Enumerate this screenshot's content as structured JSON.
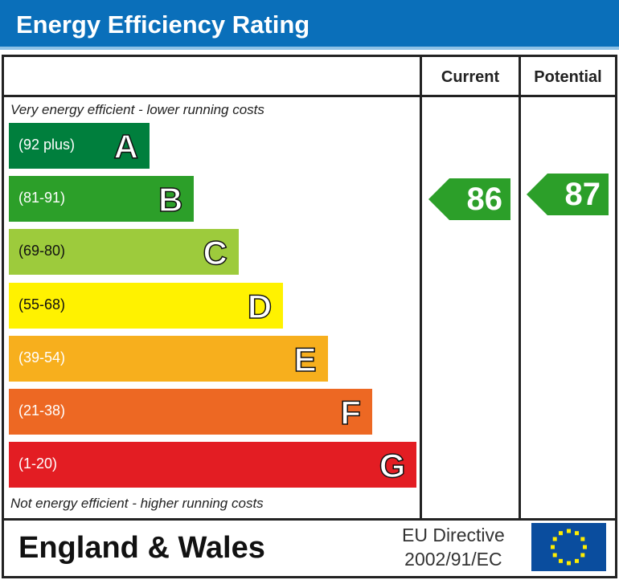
{
  "title": "Energy Efficiency Rating",
  "columns": {
    "current": "Current",
    "potential": "Potential"
  },
  "top_note": "Very energy efficient - lower running costs",
  "bottom_note": "Not energy efficient - higher running costs",
  "footer": {
    "region": "England & Wales",
    "directive_line1": "EU Directive",
    "directive_line2": "2002/91/EC",
    "flag_icon": "eu-flag-icon"
  },
  "chart_data": {
    "type": "bar",
    "title": "Energy Efficiency Rating",
    "bands": [
      {
        "letter": "A",
        "range": "(92 plus)",
        "color": "#007f3d"
      },
      {
        "letter": "B",
        "range": "(81-91)",
        "color": "#2c9f29"
      },
      {
        "letter": "C",
        "range": "(69-80)",
        "color": "#9dcb3c"
      },
      {
        "letter": "D",
        "range": "(55-68)",
        "color": "#fff200"
      },
      {
        "letter": "E",
        "range": "(39-54)",
        "color": "#f7af1d"
      },
      {
        "letter": "F",
        "range": "(21-38)",
        "color": "#ed6823"
      },
      {
        "letter": "G",
        "range": "(1-20)",
        "color": "#e31d23"
      }
    ],
    "current": {
      "value": "86",
      "band": "B",
      "color": "#2c9f29"
    },
    "potential": {
      "value": "87",
      "band": "B",
      "color": "#2c9f29"
    }
  }
}
